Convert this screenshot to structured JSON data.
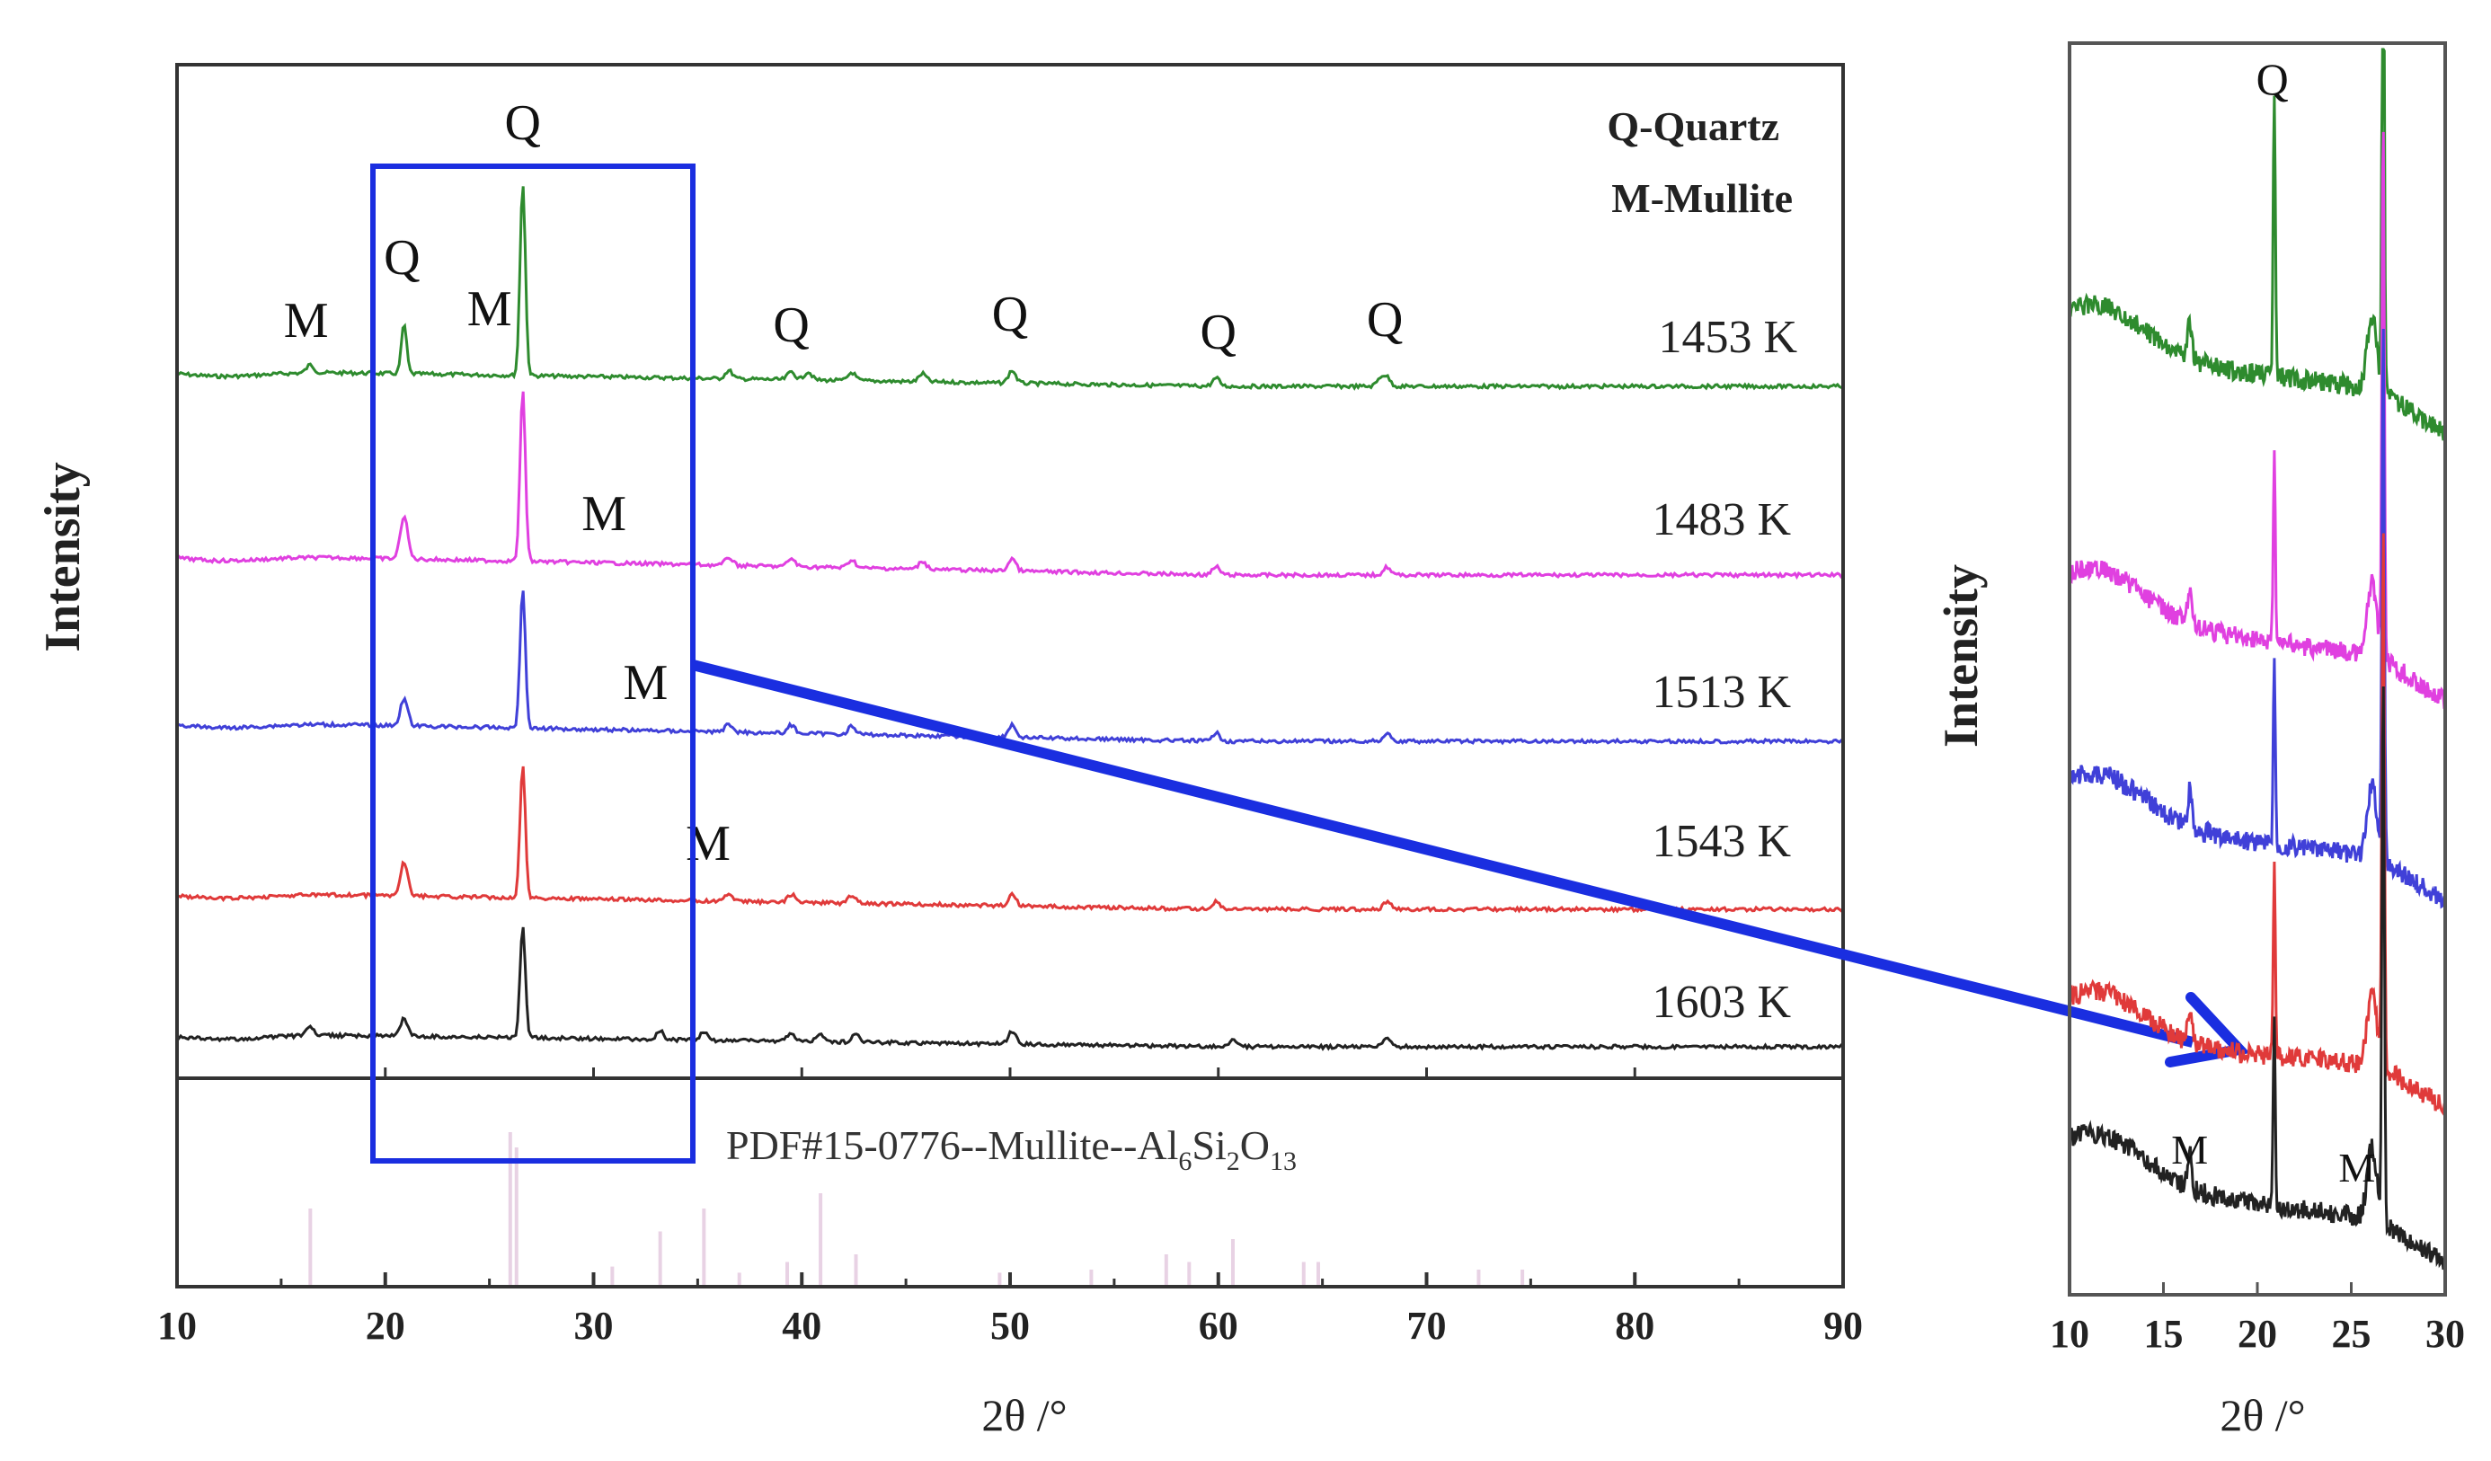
{
  "figure": {
    "main_panel": {
      "xlabel": "2θ /°",
      "ylabel": "Intensity",
      "xlim": [
        10,
        90
      ],
      "xticks": [
        "10",
        "20",
        "30",
        "40",
        "50",
        "60",
        "70",
        "80",
        "90"
      ],
      "legend": {
        "quartz": "Q-Quartz",
        "mullite": "M-Mullite"
      },
      "reference": {
        "prefix": "PDF#15-0776--Mullite--Al",
        "s1": "6",
        "mid": "Si",
        "s2": "2",
        "o": "O",
        "s3": "13"
      }
    },
    "inset_panel": {
      "xlabel": "2θ /°",
      "ylabel": "Intensity",
      "xlim": [
        10,
        30
      ],
      "xticks": [
        "10",
        "15",
        "20",
        "25",
        "30"
      ]
    }
  },
  "chart_data": [
    {
      "type": "line",
      "title": "",
      "xlabel": "2θ /°",
      "ylabel": "Intensity",
      "xlim": [
        10,
        90
      ],
      "series": [
        {
          "name": "1453 K",
          "label": "1453 K",
          "color": "#2e8b2e",
          "peaks_2theta": [
            16.4,
            20.9,
            26.6,
            36.5,
            39.5,
            40.3,
            42.4,
            45.8,
            50.1,
            59.9,
            67.8,
            68.1
          ]
        },
        {
          "name": "1483 K",
          "label": "1483 K",
          "color": "#e040e0",
          "peaks_2theta": [
            20.9,
            26.6,
            36.5,
            39.5,
            42.4,
            45.8,
            50.1,
            59.9,
            68.1
          ]
        },
        {
          "name": "1513 K",
          "label": "1513 K",
          "color": "#4040d8",
          "peaks_2theta": [
            20.9,
            26.6,
            36.5,
            39.5,
            42.4,
            50.1,
            59.9,
            68.1
          ]
        },
        {
          "name": "1543 K",
          "label": "1543 K",
          "color": "#e03a3a",
          "peaks_2theta": [
            20.9,
            26.6,
            36.5,
            39.5,
            42.4,
            50.1,
            59.9,
            68.1
          ]
        },
        {
          "name": "1603 K",
          "label": "1603 K",
          "color": "#222222",
          "peaks_2theta": [
            16.4,
            20.9,
            26.6,
            33.2,
            35.3,
            39.5,
            40.9,
            42.6,
            50.1,
            60.7,
            68.1
          ]
        }
      ],
      "annotations": [
        {
          "text": "M",
          "x": 16.2
        },
        {
          "text": "Q",
          "x": 20.8
        },
        {
          "text": "M",
          "x": 25.0
        },
        {
          "text": "Q",
          "x": 26.6
        },
        {
          "text": "M",
          "x": 30.5
        },
        {
          "text": "M",
          "x": 32.5
        },
        {
          "text": "M",
          "x": 35.5
        },
        {
          "text": "Q",
          "x": 39.5
        },
        {
          "text": "Q",
          "x": 50.0
        },
        {
          "text": "Q",
          "x": 60.0
        },
        {
          "text": "Q",
          "x": 68.0
        }
      ],
      "reference_pattern": {
        "name": "PDF#15-0776 Mullite Al6Si2O13",
        "x": [
          16.4,
          26.0,
          26.3,
          30.9,
          33.2,
          35.3,
          37.0,
          39.3,
          40.9,
          42.6,
          49.5,
          53.9,
          57.5,
          58.6,
          60.7,
          64.1,
          64.8,
          70.0,
          72.5,
          74.6
        ],
        "intensity": [
          0.5,
          1.0,
          0.9,
          0.12,
          0.35,
          0.5,
          0.08,
          0.15,
          0.6,
          0.2,
          0.08,
          0.1,
          0.2,
          0.15,
          0.3,
          0.15,
          0.15,
          0.08,
          0.1,
          0.1
        ]
      }
    },
    {
      "type": "line",
      "title": "",
      "xlabel": "2θ /°",
      "ylabel": "Intensity",
      "xlim": [
        10,
        30
      ],
      "series": [
        {
          "name": "1453 K",
          "color": "#2e8b2e"
        },
        {
          "name": "1483 K",
          "color": "#e040e0"
        },
        {
          "name": "1513 K",
          "color": "#4040d8"
        },
        {
          "name": "1543 K",
          "color": "#e03a3a"
        },
        {
          "name": "1603 K",
          "color": "#222222"
        }
      ],
      "annotations": [
        {
          "text": "Q",
          "x": 20.8
        },
        {
          "text": "M",
          "x": 16.4
        },
        {
          "text": "M",
          "x": 25.3
        }
      ]
    }
  ]
}
